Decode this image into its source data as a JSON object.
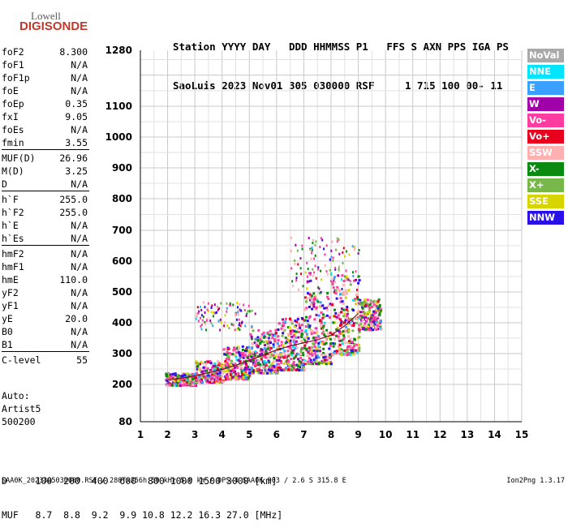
{
  "logo": {
    "top": "Lowell",
    "bottom": "DIGISONDE"
  },
  "header": {
    "line1": "Station YYYY DAY   DDD HHMMSS P1   FFS S AXN PPS IGA PS",
    "line2": "SaoLuis 2023 Nov01 305 030000 RSF     1 715 100 00- 11"
  },
  "params_groups": [
    [
      [
        "foF2",
        "8.300"
      ],
      [
        "foF1",
        "N/A"
      ],
      [
        "foF1p",
        "N/A"
      ],
      [
        "foE",
        "N/A"
      ],
      [
        "foEp",
        "0.35"
      ],
      [
        "fxI",
        "9.05"
      ],
      [
        "foEs",
        "N/A"
      ],
      [
        "fmin",
        "3.55"
      ]
    ],
    [
      [
        "MUF(D)",
        "26.96"
      ],
      [
        "M(D)",
        "3.25"
      ],
      [
        "D",
        "N/A"
      ]
    ],
    [
      [
        "h`F",
        "255.0"
      ],
      [
        "h`F2",
        "255.0"
      ],
      [
        "h`E",
        "N/A"
      ],
      [
        "h`Es",
        "N/A"
      ]
    ],
    [
      [
        "hmF2",
        "N/A"
      ],
      [
        "hmF1",
        "N/A"
      ],
      [
        "hmE",
        "110.0"
      ],
      [
        "yF2",
        "N/A"
      ],
      [
        "yF1",
        "N/A"
      ],
      [
        "yE",
        "20.0"
      ],
      [
        "B0",
        "N/A"
      ],
      [
        "B1",
        "N/A"
      ]
    ],
    [
      [
        "C-level",
        "55"
      ]
    ]
  ],
  "autoscaling": {
    "line1": "Auto:",
    "line2": "Artist5",
    "line3": "500200"
  },
  "legend": [
    {
      "label": "NoVal",
      "color": "#a9a9a9"
    },
    {
      "label": "NNE",
      "color": "#00e5ff"
    },
    {
      "label": "E",
      "color": "#3aa0ff"
    },
    {
      "label": "W",
      "color": "#a000a8"
    },
    {
      "label": "Vo-",
      "color": "#ff3da0"
    },
    {
      "label": "Vo+",
      "color": "#e8001c"
    },
    {
      "label": "SSW",
      "color": "#ffb0b0"
    },
    {
      "label": "X-",
      "color": "#0a8a10"
    },
    {
      "label": "X+",
      "color": "#78b84a"
    },
    {
      "label": "SSE",
      "color": "#d8d400"
    },
    {
      "label": "NNW",
      "color": "#2a10e8"
    }
  ],
  "footer_table": {
    "line1": "D     100  200  400  600  800 1000 1500 3000 [km]",
    "line2": "MUF   8.7  8.8  9.2  9.9 10.8 12.2 16.3 27.0 [MHz]"
  },
  "footer": {
    "left": "SAA0K_2023305030000.RSF / 280fx256h 50 kHz 5.0 km / DPS-4 SAA0K 903 / 2.6 S 315.8 E",
    "right": "Ion2Png 1.3.17"
  },
  "chart_data": {
    "type": "scatter",
    "xlim": [
      1,
      15
    ],
    "ylim": [
      80,
      1280
    ],
    "x_ticks": [
      1,
      2,
      3,
      4,
      5,
      6,
      7,
      8,
      9,
      10,
      11,
      12,
      13,
      14,
      15
    ],
    "y_ticks": [
      80,
      200,
      300,
      400,
      500,
      600,
      700,
      800,
      900,
      1000,
      1100,
      1280
    ],
    "grid": true,
    "trace": [
      [
        2.0,
        215
      ],
      [
        2.5,
        220
      ],
      [
        3.0,
        228
      ],
      [
        3.5,
        238
      ],
      [
        4.0,
        248
      ],
      [
        4.5,
        262
      ],
      [
        5.0,
        278
      ],
      [
        5.5,
        295
      ],
      [
        6.0,
        312
      ],
      [
        6.5,
        325
      ],
      [
        7.0,
        335
      ],
      [
        7.5,
        345
      ],
      [
        8.0,
        360
      ],
      [
        8.5,
        390
      ],
      [
        9.0,
        430
      ]
    ],
    "scatter_bands": [
      {
        "xmin": 1.9,
        "xmax": 3.0,
        "ymin": 200,
        "ymax": 240
      },
      {
        "xmin": 3.0,
        "xmax": 4.0,
        "ymin": 210,
        "ymax": 280
      },
      {
        "xmin": 4.0,
        "xmax": 5.0,
        "ymin": 220,
        "ymax": 330
      },
      {
        "xmin": 5.0,
        "xmax": 6.0,
        "ymin": 240,
        "ymax": 380
      },
      {
        "xmin": 6.0,
        "xmax": 7.0,
        "ymin": 250,
        "ymax": 420
      },
      {
        "xmin": 7.0,
        "xmax": 8.0,
        "ymin": 270,
        "ymax": 500
      },
      {
        "xmin": 8.0,
        "xmax": 9.0,
        "ymin": 300,
        "ymax": 560
      },
      {
        "xmin": 9.0,
        "xmax": 9.8,
        "ymin": 380,
        "ymax": 480
      }
    ],
    "sparse_bands": [
      {
        "xmin": 3.0,
        "xmax": 5.2,
        "ymin": 380,
        "ymax": 470
      },
      {
        "xmin": 6.5,
        "xmax": 9.0,
        "ymin": 500,
        "ymax": 680
      }
    ]
  }
}
